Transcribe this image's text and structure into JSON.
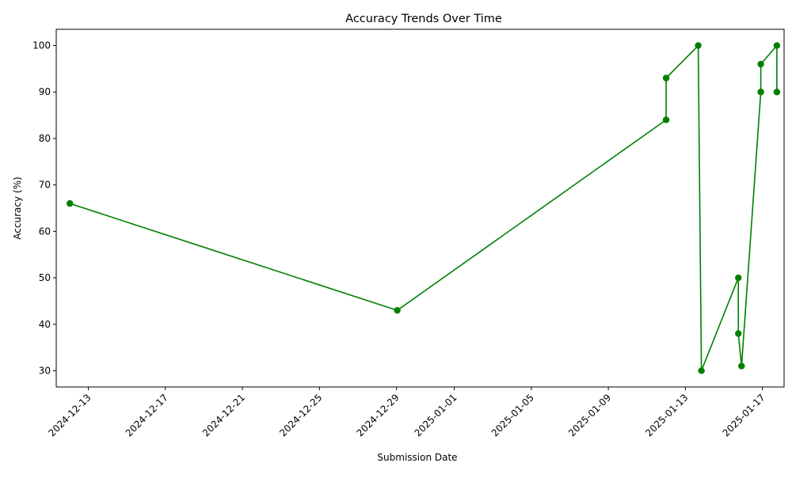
{
  "chart_data": {
    "type": "line",
    "title": "Accuracy Trends Over Time",
    "xlabel": "Submission Date",
    "ylabel": "Accuracy (%)",
    "x_ticks": [
      "2024-12-13",
      "2024-12-17",
      "2024-12-21",
      "2024-12-25",
      "2024-12-29",
      "2025-01-01",
      "2025-01-05",
      "2025-01-09",
      "2025-01-13",
      "2025-01-17"
    ],
    "y_ticks": [
      30,
      40,
      50,
      60,
      70,
      80,
      90,
      100
    ],
    "ylim": [
      26.5,
      103.5
    ],
    "xlim": [
      "2024-12-11T08:00",
      "2025-01-18T03:00"
    ],
    "grid": false,
    "line_color": "#008000",
    "series": [
      {
        "points": [
          {
            "x": "2024-12-12T01:00",
            "y": 66
          },
          {
            "x": "2024-12-29T01:00",
            "y": 43
          },
          {
            "x": "2025-01-12T00:00",
            "y": 84
          },
          {
            "x": "2025-01-12T00:00",
            "y": 93
          },
          {
            "x": "2025-01-13T16:00",
            "y": 100
          },
          {
            "x": "2025-01-13T20:00",
            "y": 30
          },
          {
            "x": "2025-01-15T18:00",
            "y": 50
          },
          {
            "x": "2025-01-15T18:00",
            "y": 38
          },
          {
            "x": "2025-01-15T22:00",
            "y": 31
          },
          {
            "x": "2025-01-16T22:00",
            "y": 90
          },
          {
            "x": "2025-01-16T22:00",
            "y": 96
          },
          {
            "x": "2025-01-17T18:00",
            "y": 100
          },
          {
            "x": "2025-01-17T18:00",
            "y": 90
          }
        ]
      }
    ]
  }
}
